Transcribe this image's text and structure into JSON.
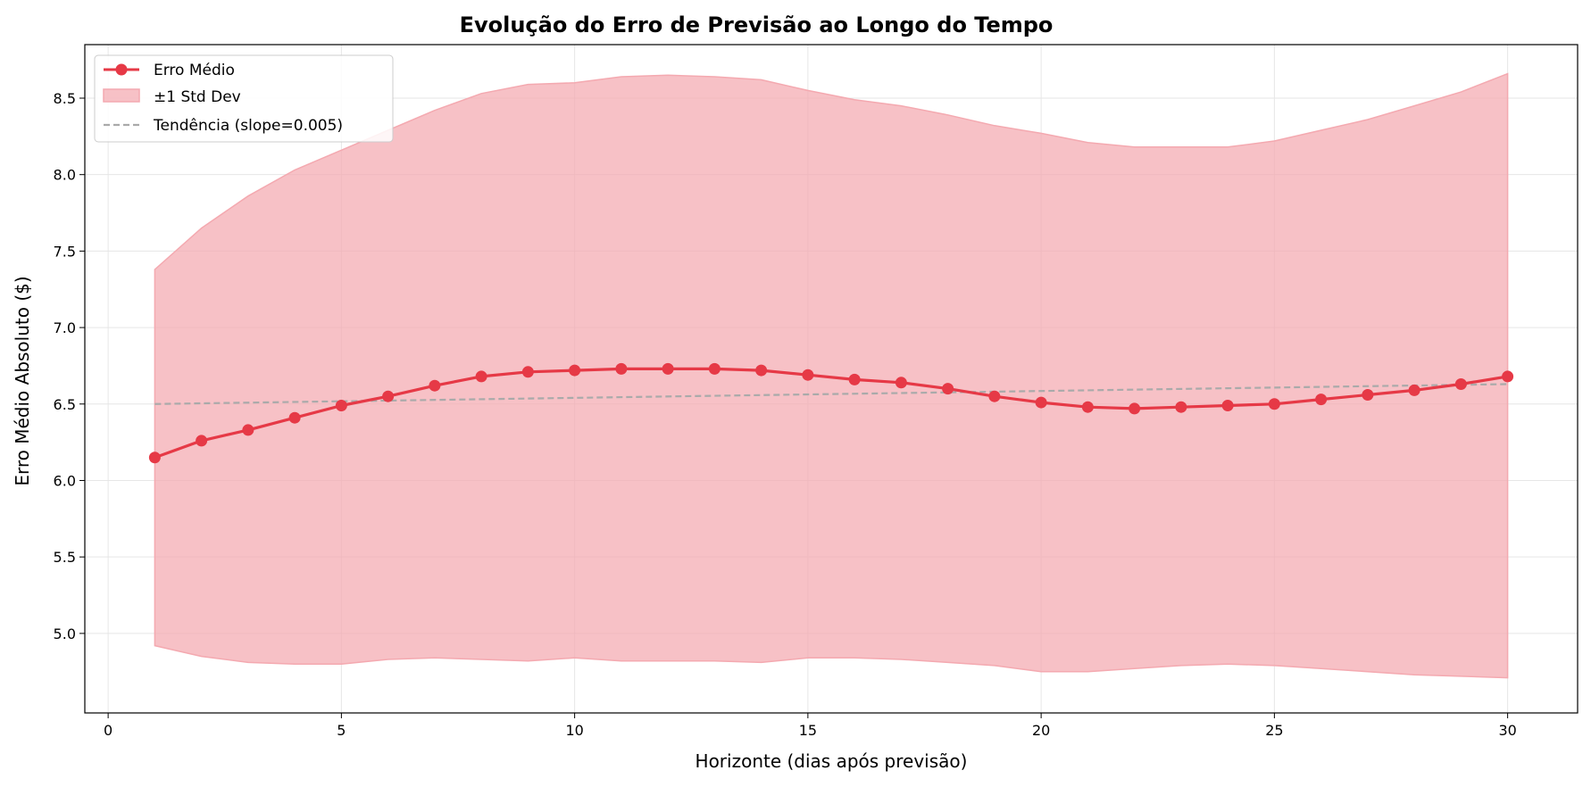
{
  "chart_data": {
    "type": "line",
    "title": "Evolução do Erro de Previsão ao Longo do Tempo",
    "xlabel": "Horizonte (dias após previsão)",
    "ylabel": "Erro Médio Absoluto ($)",
    "xlim": [
      -0.5,
      31.5
    ],
    "ylim": [
      4.48,
      8.85
    ],
    "xticks": [
      0,
      5,
      10,
      15,
      20,
      25,
      30
    ],
    "yticks": [
      5.0,
      5.5,
      6.0,
      6.5,
      7.0,
      7.5,
      8.0,
      8.5
    ],
    "grid": true,
    "legend_position": "top-left",
    "x": [
      1,
      2,
      3,
      4,
      5,
      6,
      7,
      8,
      9,
      10,
      11,
      12,
      13,
      14,
      15,
      16,
      17,
      18,
      19,
      20,
      21,
      22,
      23,
      24,
      25,
      26,
      27,
      28,
      29,
      30
    ],
    "series": [
      {
        "name": "Erro Médio",
        "kind": "line-markers",
        "color": "#e63946",
        "values": [
          6.15,
          6.26,
          6.33,
          6.41,
          6.49,
          6.55,
          6.62,
          6.68,
          6.71,
          6.72,
          6.73,
          6.73,
          6.73,
          6.72,
          6.69,
          6.66,
          6.64,
          6.6,
          6.55,
          6.51,
          6.48,
          6.47,
          6.48,
          6.49,
          6.5,
          6.53,
          6.56,
          6.59,
          6.63,
          6.68
        ]
      },
      {
        "name": "±1 Std Dev",
        "kind": "band",
        "color": "#f4a9b0",
        "upper": [
          7.38,
          7.65,
          7.86,
          8.03,
          8.16,
          8.29,
          8.42,
          8.53,
          8.59,
          8.6,
          8.64,
          8.65,
          8.64,
          8.62,
          8.55,
          8.49,
          8.45,
          8.39,
          8.32,
          8.27,
          8.21,
          8.18,
          8.18,
          8.18,
          8.22,
          8.29,
          8.36,
          8.45,
          8.54,
          8.66
        ],
        "lower": [
          4.92,
          4.85,
          4.81,
          4.8,
          4.8,
          4.83,
          4.84,
          4.83,
          4.82,
          4.84,
          4.82,
          4.82,
          4.82,
          4.81,
          4.84,
          4.84,
          4.83,
          4.81,
          4.79,
          4.75,
          4.75,
          4.77,
          4.79,
          4.8,
          4.79,
          4.77,
          4.75,
          4.73,
          4.72,
          4.71
        ]
      },
      {
        "name": "Tendência (slope=0.005)",
        "kind": "dashed-line",
        "color": "#aaaaaa",
        "values_start": 6.5,
        "values_end": 6.63
      }
    ]
  }
}
